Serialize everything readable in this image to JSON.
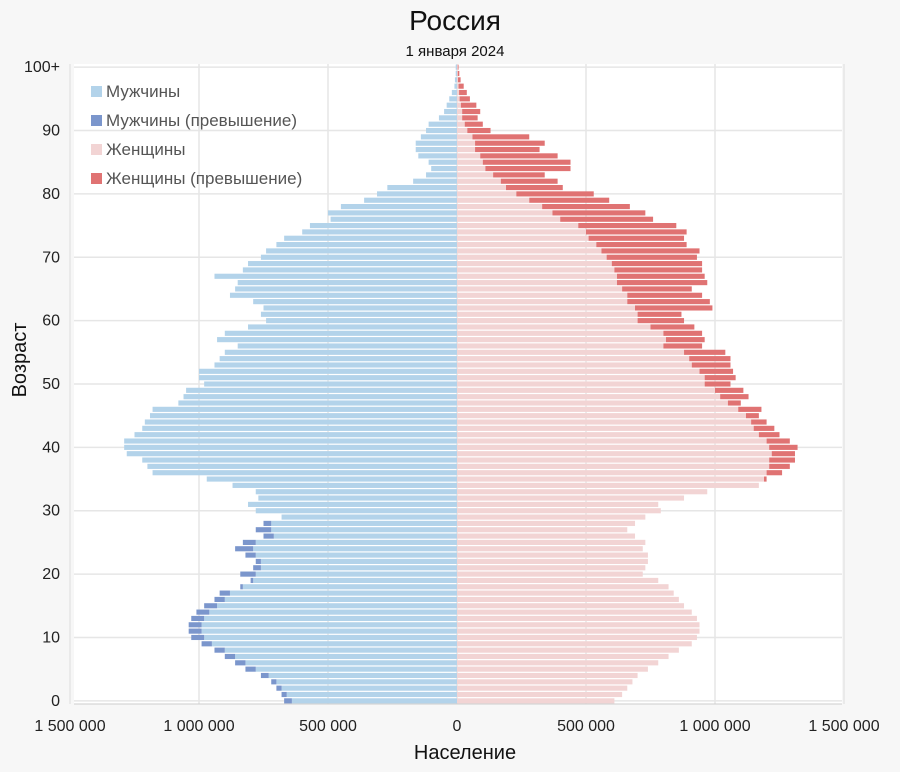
{
  "chart_data": {
    "type": "bar",
    "orientation": "horizontal",
    "title": "Россия",
    "subtitle": "1 января 2024",
    "xlabel": "Население",
    "ylabel": "Возраст",
    "xlim": [
      -1500000,
      1500000
    ],
    "x_ticks": [
      -1500000,
      -1000000,
      -500000,
      0,
      500000,
      1000000,
      1500000
    ],
    "x_tick_labels": [
      "1 500 000",
      "1 000 000",
      "500 000",
      "0",
      "500 000",
      "1 000 000",
      "1 500 000"
    ],
    "y_ticks": [
      0,
      10,
      20,
      30,
      40,
      50,
      60,
      70,
      80,
      90,
      100
    ],
    "y_tick_labels": [
      "0",
      "10",
      "20",
      "30",
      "40",
      "50",
      "60",
      "70",
      "80",
      "90",
      "100+"
    ],
    "legend_position": "top-left",
    "grid": true,
    "colors": {
      "men": "#b3d3ea",
      "men_excess": "#7b96cc",
      "women": "#f2d4d4",
      "women_excess": "#e07373"
    },
    "legend": [
      {
        "label": "Мужчины",
        "color": "#b3d3ea"
      },
      {
        "label": "Мужчины (превышение)",
        "color": "#7b96cc"
      },
      {
        "label": "Женщины",
        "color": "#f2d4d4"
      },
      {
        "label": "Женщины (превышение)",
        "color": "#e07373"
      }
    ],
    "ages": [
      0,
      1,
      2,
      3,
      4,
      5,
      6,
      7,
      8,
      9,
      10,
      11,
      12,
      13,
      14,
      15,
      16,
      17,
      18,
      19,
      20,
      21,
      22,
      23,
      24,
      25,
      26,
      27,
      28,
      29,
      30,
      31,
      32,
      33,
      34,
      35,
      36,
      37,
      38,
      39,
      40,
      41,
      42,
      43,
      44,
      45,
      46,
      47,
      48,
      49,
      50,
      51,
      52,
      53,
      54,
      55,
      56,
      57,
      58,
      59,
      60,
      61,
      62,
      63,
      64,
      65,
      66,
      67,
      68,
      69,
      70,
      71,
      72,
      73,
      74,
      75,
      76,
      77,
      78,
      79,
      80,
      81,
      82,
      83,
      84,
      85,
      86,
      87,
      88,
      89,
      90,
      91,
      92,
      93,
      94,
      95,
      96,
      97,
      98,
      99,
      100
    ],
    "series": [
      {
        "name": "Мужчины",
        "values": [
          640000,
          660000,
          680000,
          700000,
          730000,
          780000,
          820000,
          860000,
          900000,
          950000,
          980000,
          990000,
          990000,
          980000,
          960000,
          930000,
          900000,
          880000,
          830000,
          790000,
          780000,
          760000,
          760000,
          780000,
          790000,
          780000,
          710000,
          720000,
          720000,
          680000,
          780000,
          810000,
          770000,
          780000,
          870000,
          970000,
          1180000,
          1200000,
          1220000,
          1280000,
          1290000,
          1290000,
          1250000,
          1220000,
          1210000,
          1190000,
          1180000,
          1080000,
          1060000,
          1050000,
          980000,
          1000000,
          1000000,
          940000,
          920000,
          900000,
          850000,
          930000,
          900000,
          810000,
          740000,
          760000,
          750000,
          790000,
          880000,
          860000,
          850000,
          940000,
          830000,
          810000,
          760000,
          740000,
          700000,
          670000,
          600000,
          570000,
          490000,
          500000,
          450000,
          360000,
          310000,
          270000,
          170000,
          120000,
          100000,
          110000,
          150000,
          160000,
          160000,
          140000,
          120000,
          110000,
          70000,
          50000,
          40000,
          30000,
          20000,
          10000,
          8000,
          5000,
          5000
        ]
      },
      {
        "name": "Женщины",
        "values": [
          610000,
          640000,
          660000,
          680000,
          700000,
          740000,
          780000,
          820000,
          860000,
          910000,
          930000,
          940000,
          940000,
          930000,
          910000,
          880000,
          860000,
          840000,
          820000,
          780000,
          720000,
          730000,
          740000,
          740000,
          720000,
          730000,
          690000,
          660000,
          690000,
          730000,
          790000,
          780000,
          880000,
          970000,
          1170000,
          1190000,
          1200000,
          1210000,
          1210000,
          1220000,
          1210000,
          1200000,
          1170000,
          1150000,
          1140000,
          1120000,
          1090000,
          1050000,
          1020000,
          1000000,
          960000,
          960000,
          940000,
          910000,
          900000,
          880000,
          800000,
          810000,
          800000,
          750000,
          700000,
          700000,
          690000,
          660000,
          660000,
          640000,
          620000,
          620000,
          610000,
          600000,
          580000,
          560000,
          540000,
          510000,
          500000,
          470000,
          400000,
          370000,
          330000,
          280000,
          230000,
          190000,
          170000,
          140000,
          110000,
          100000,
          90000,
          70000,
          70000,
          60000,
          40000,
          30000,
          20000,
          20000,
          15000,
          10000,
          8000,
          6000,
          4000,
          3000,
          3000
        ]
      },
      {
        "name": "Мужчины (превышение)",
        "values": [
          30000,
          20000,
          20000,
          20000,
          30000,
          40000,
          40000,
          40000,
          40000,
          40000,
          50000,
          50000,
          50000,
          50000,
          50000,
          50000,
          40000,
          40000,
          10000,
          10000,
          60000,
          30000,
          20000,
          40000,
          70000,
          50000,
          40000,
          60000,
          30000,
          0,
          0,
          0,
          0,
          0,
          0,
          0,
          0,
          0,
          0,
          0,
          0,
          0,
          0,
          0,
          0,
          0,
          0,
          0,
          0,
          0,
          0,
          0,
          0,
          0,
          0,
          0,
          0,
          0,
          0,
          0,
          0,
          0,
          0,
          0,
          0,
          0,
          0,
          0,
          0,
          0,
          0,
          0,
          0,
          0,
          0,
          0,
          0,
          0,
          0,
          0,
          0,
          0,
          0,
          0,
          0,
          0,
          0,
          0,
          0,
          0,
          0,
          0,
          0,
          0,
          0,
          0,
          0,
          0,
          0,
          0,
          0
        ]
      },
      {
        "name": "Женщины (превышение)",
        "values": [
          0,
          0,
          0,
          0,
          0,
          0,
          0,
          0,
          0,
          0,
          0,
          0,
          0,
          0,
          0,
          0,
          0,
          0,
          0,
          0,
          0,
          0,
          0,
          0,
          0,
          0,
          0,
          0,
          0,
          0,
          0,
          0,
          0,
          0,
          0,
          10000,
          60000,
          80000,
          100000,
          90000,
          110000,
          90000,
          80000,
          80000,
          60000,
          50000,
          90000,
          50000,
          110000,
          110000,
          100000,
          120000,
          130000,
          150000,
          160000,
          160000,
          150000,
          150000,
          150000,
          170000,
          180000,
          170000,
          300000,
          320000,
          290000,
          270000,
          350000,
          340000,
          340000,
          350000,
          350000,
          380000,
          350000,
          370000,
          390000,
          380000,
          360000,
          360000,
          340000,
          310000,
          300000,
          220000,
          220000,
          200000,
          330000,
          340000,
          300000,
          250000,
          270000,
          220000,
          90000,
          70000,
          60000,
          70000,
          60000,
          40000,
          30000,
          20000,
          10000,
          6000,
          3000
        ]
      }
    ]
  }
}
